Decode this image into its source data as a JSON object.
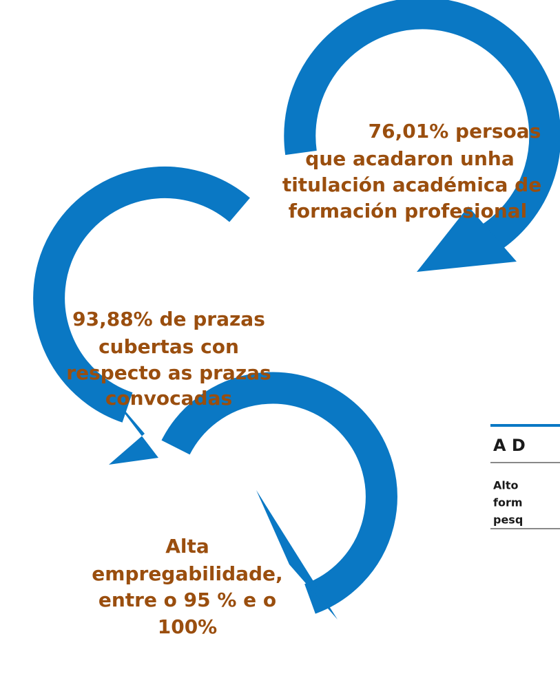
{
  "nodes": [
    {
      "lines": [
        "76,01% persoas",
        "que acadaron unha",
        "titulación académica de",
        "formación profesional"
      ]
    },
    {
      "lines": [
        "93,88% de prazas",
        "cubertas con",
        "respecto as prazas",
        "convocadas"
      ]
    },
    {
      "lines": [
        "Alta",
        "empregabilidade,",
        "entre o 95 % e o",
        "100%"
      ]
    }
  ],
  "card": {
    "title": "A D",
    "lines": [
      "Alto",
      "form",
      "pesq"
    ]
  }
}
